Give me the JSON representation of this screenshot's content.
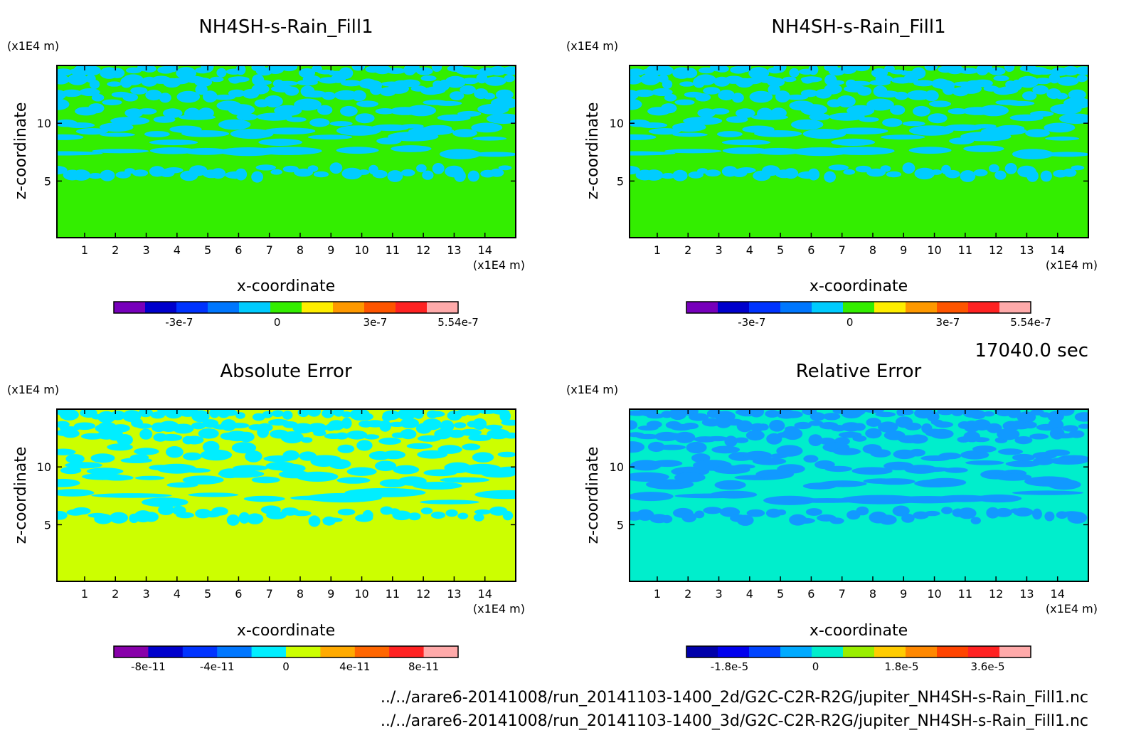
{
  "time_label": "17040.0 sec",
  "footer": {
    "line1": "../../arare6-20141008/run_20141103-1400_2d/G2C-C2R-R2G/jupiter_NH4SH-s-Rain_Fill1.nc",
    "line2": "../../arare6-20141008/run_20141103-1400_3d/G2C-C2R-R2G/jupiter_NH4SH-s-Rain_Fill1.nc"
  },
  "chart_data": [
    {
      "type": "heatmap",
      "title": "NH4SH-s-Rain_Fill1",
      "xlabel": "x-coordinate",
      "ylabel": "z-coordinate",
      "xunit": "(x1E4 m)",
      "yunit": "(x1E4 m)",
      "xlim": [
        0.1,
        15.0
      ],
      "ylim": [
        0.1,
        15.0
      ],
      "xticks": [
        "1",
        "2",
        "3",
        "4",
        "5",
        "6",
        "7",
        "8",
        "9",
        "10",
        "11",
        "12",
        "13",
        "14"
      ],
      "yticks": [
        "5",
        "10"
      ],
      "background_color": "#33ee00",
      "feature_color": "#00ccff",
      "colorbar": {
        "colors": [
          "#7700bb",
          "#0000cc",
          "#0033ff",
          "#0077ff",
          "#00ccff",
          "#33ee00",
          "#ffee00",
          "#ff9900",
          "#ff5500",
          "#ff2222",
          "#ffaaaa"
        ],
        "tick_labels": [
          "-3e-7",
          "0",
          "3e-7",
          "5.54e-7"
        ],
        "tick_values": [
          -3e-07,
          0,
          3e-07,
          5.54e-07
        ],
        "range": [
          -5e-07,
          5.54e-07
        ]
      }
    },
    {
      "type": "heatmap",
      "title": "NH4SH-s-Rain_Fill1",
      "xlabel": "x-coordinate",
      "ylabel": "z-coordinate",
      "xunit": "(x1E4 m)",
      "yunit": "(x1E4 m)",
      "xlim": [
        0.1,
        15.0
      ],
      "ylim": [
        0.1,
        15.0
      ],
      "xticks": [
        "1",
        "2",
        "3",
        "4",
        "5",
        "6",
        "7",
        "8",
        "9",
        "10",
        "11",
        "12",
        "13",
        "14"
      ],
      "yticks": [
        "5",
        "10"
      ],
      "background_color": "#33ee00",
      "feature_color": "#00ccff",
      "colorbar": {
        "colors": [
          "#7700bb",
          "#0000cc",
          "#0033ff",
          "#0077ff",
          "#00ccff",
          "#33ee00",
          "#ffee00",
          "#ff9900",
          "#ff5500",
          "#ff2222",
          "#ffaaaa"
        ],
        "tick_labels": [
          "-3e-7",
          "0",
          "3e-7",
          "5.54e-7"
        ],
        "tick_values": [
          -3e-07,
          0,
          3e-07,
          5.54e-07
        ],
        "range": [
          -5e-07,
          5.54e-07
        ]
      }
    },
    {
      "type": "heatmap",
      "title": "Absolute Error",
      "xlabel": "x-coordinate",
      "ylabel": "z-coordinate",
      "xunit": "(x1E4 m)",
      "yunit": "(x1E4 m)",
      "xlim": [
        0.1,
        15.0
      ],
      "ylim": [
        0.1,
        15.0
      ],
      "xticks": [
        "1",
        "2",
        "3",
        "4",
        "5",
        "6",
        "7",
        "8",
        "9",
        "10",
        "11",
        "12",
        "13",
        "14"
      ],
      "yticks": [
        "5",
        "10"
      ],
      "background_color": "#ccff00",
      "feature_color": "#00eeff",
      "colorbar": {
        "colors": [
          "#8800aa",
          "#0000cc",
          "#0033ff",
          "#0077ff",
          "#00eeff",
          "#ccff00",
          "#ffaa00",
          "#ff6600",
          "#ff2222",
          "#ffaaaa"
        ],
        "tick_labels": [
          "-8e-11",
          "-4e-11",
          "0",
          "4e-11",
          "8e-11"
        ],
        "tick_values": [
          -8e-11,
          -4e-11,
          0,
          4e-11,
          8e-11
        ],
        "range": [
          -1e-10,
          1e-10
        ]
      }
    },
    {
      "type": "heatmap",
      "title": "Relative Error",
      "xlabel": "x-coordinate",
      "ylabel": "z-coordinate",
      "xunit": "(x1E4 m)",
      "yunit": "(x1E4 m)",
      "xlim": [
        0.1,
        15.0
      ],
      "ylim": [
        0.1,
        15.0
      ],
      "xticks": [
        "1",
        "2",
        "3",
        "4",
        "5",
        "6",
        "7",
        "8",
        "9",
        "10",
        "11",
        "12",
        "13",
        "14"
      ],
      "yticks": [
        "5",
        "10"
      ],
      "background_color": "#00eecc",
      "feature_color": "#1199ff",
      "colorbar": {
        "colors": [
          "#0000aa",
          "#0000ee",
          "#0044ff",
          "#00aaff",
          "#00eecc",
          "#99ee00",
          "#ffcc00",
          "#ff8800",
          "#ff4400",
          "#ff2222",
          "#ffaaaa"
        ],
        "tick_labels": [
          "-1.8e-5",
          "0",
          "1.8e-5",
          "3.6e-5"
        ],
        "tick_values": [
          -1.8e-05,
          0,
          1.8e-05,
          3.6e-05
        ],
        "range": [
          -2.7e-05,
          4.5e-05
        ]
      }
    }
  ]
}
